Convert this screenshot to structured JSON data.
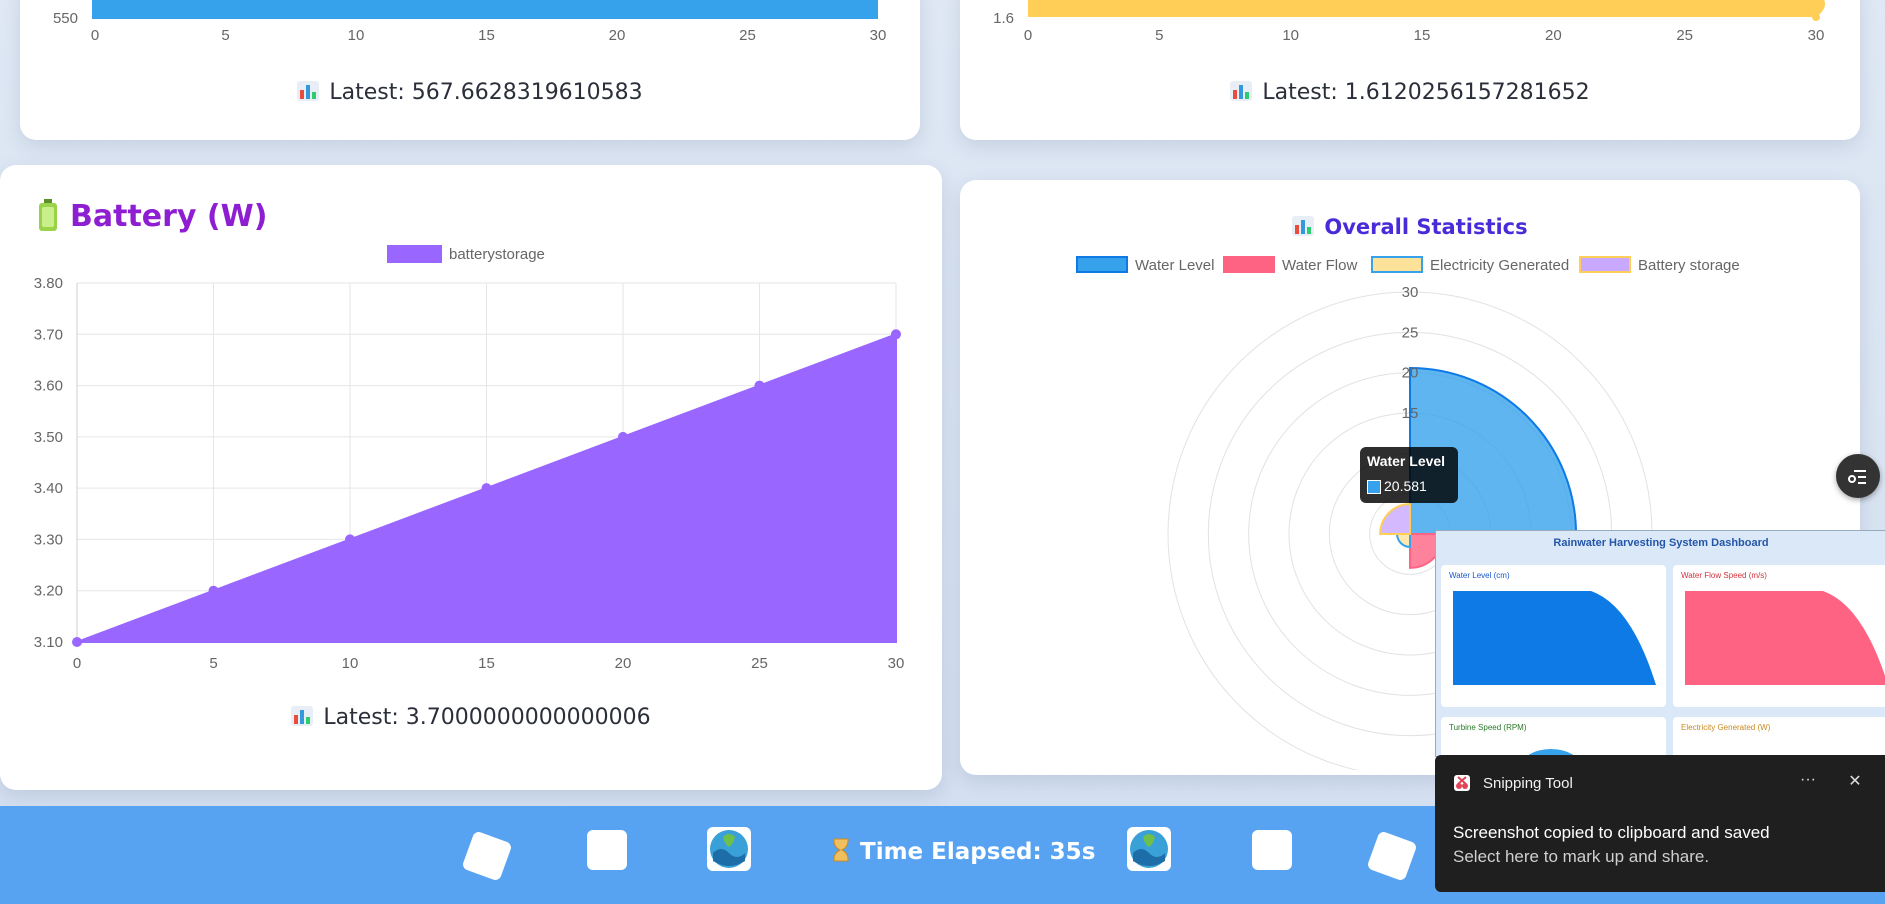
{
  "cards": {
    "top_left": {
      "latest": "Latest: 567.6628319610583"
    },
    "top_right": {
      "latest": "Latest: 1.6120256157281652"
    },
    "battery": {
      "title": "Battery (W)",
      "latest": "Latest: 3.7000000000000006"
    },
    "overall": {
      "title": "Overall Statistics",
      "tooltip_title": "Water Level",
      "tooltip_value": "20.581"
    }
  },
  "chart_data": [
    {
      "type": "bar",
      "x_ticks": [
        0,
        5,
        10,
        15,
        20,
        25,
        30
      ],
      "y_ticks_visible": [
        "550"
      ],
      "color": "#36a2eb"
    },
    {
      "type": "area",
      "x_ticks": [
        0,
        5,
        10,
        15,
        20,
        25,
        30
      ],
      "y_ticks_visible": [
        "1.6"
      ],
      "color": "#ffce56"
    },
    {
      "type": "area",
      "legend": [
        "batterystorage"
      ],
      "x": [
        0,
        5,
        10,
        15,
        20,
        25,
        30
      ],
      "values": [
        3.1,
        3.2,
        3.3,
        3.4,
        3.5,
        3.6,
        3.7
      ],
      "y_ticks": [
        "3.10",
        "3.20",
        "3.30",
        "3.40",
        "3.50",
        "3.60",
        "3.70",
        "3.80"
      ],
      "ylim": [
        3.1,
        3.8
      ],
      "xlim": [
        0,
        30
      ],
      "color": "#9966ff",
      "grid": true
    },
    {
      "type": "polarArea",
      "legend": [
        "Water Level",
        "Water Flow",
        "Electricity Generated",
        "Battery storage"
      ],
      "values": [
        20.581,
        4.2,
        1.6,
        3.7
      ],
      "r_ticks": [
        "15",
        "20",
        "25",
        "30"
      ],
      "rlim": [
        0,
        30
      ],
      "colors": [
        "#36a2eb",
        "#ff6384",
        "#ffe29a",
        "#c9a8ff"
      ],
      "border_colors": [
        "#0d7ae6",
        "#ff6384",
        "#36a2eb",
        "#ffce56"
      ]
    }
  ],
  "bottom_bar": {
    "time_elapsed": "Time Elapsed: 35s"
  },
  "toast": {
    "app": "Snipping Tool",
    "line1": "Screenshot copied to clipboard and saved",
    "line2": "Select here to mark up and share.",
    "more": "···",
    "close": "✕"
  },
  "thumbnail": {
    "title": "Rainwater Harvesting System Dashboard",
    "panel1": "Water Level (cm)",
    "panel2": "Water Flow Speed (m/s)",
    "panel3": "Turbine Speed (RPM)",
    "panel4": "Electricity Generated (W)"
  }
}
